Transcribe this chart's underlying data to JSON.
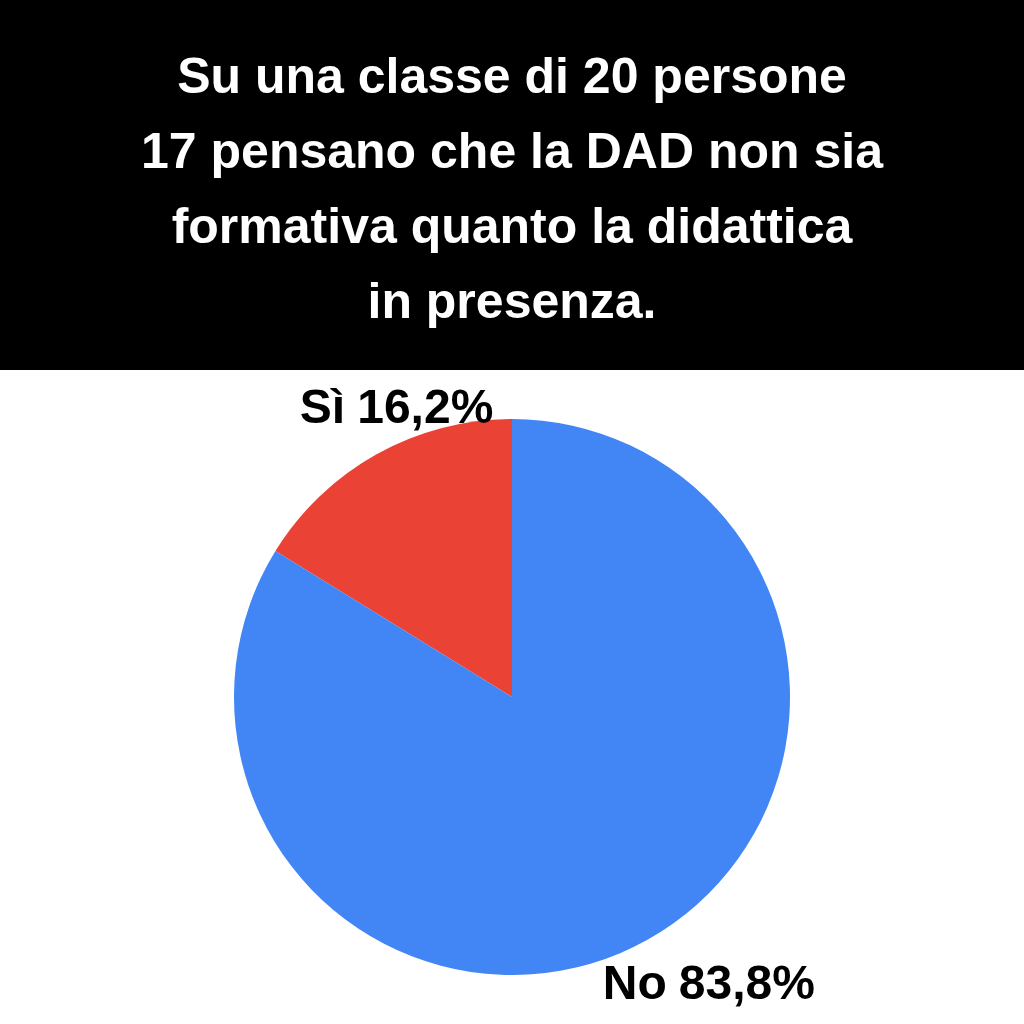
{
  "chart_data": {
    "type": "pie",
    "title": "Su una classe di 20 persone 17 pensano che la DAD non sia formativa quanto la didattica in presenza.",
    "categories": [
      "Sì",
      "No"
    ],
    "values": [
      16.2,
      83.8
    ],
    "colors": [
      "#ea4335",
      "#4285f4"
    ],
    "value_labels": [
      "16,2%",
      "83,8%"
    ],
    "legend": false
  }
}
